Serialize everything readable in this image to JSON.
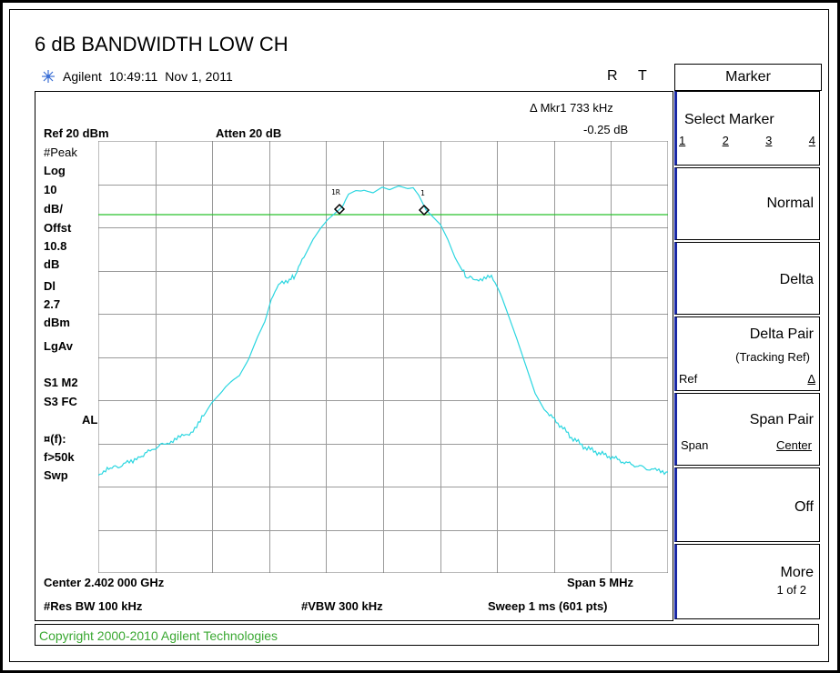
{
  "title": "6 dB BANDWIDTH LOW CH",
  "header": {
    "brand": "Agilent",
    "time": "10:49:11",
    "date": "Nov 1, 2011",
    "r_label": "R",
    "t_label": "T"
  },
  "screen": {
    "marker_readout": "Δ Mkr1  733 kHz",
    "marker_delta": "-0.25 dB",
    "ref": "Ref 20 dBm",
    "atten": "Atten 20 dB",
    "left_labels": [
      "#Peak",
      "Log",
      "10",
      "dB/",
      "Offst",
      "10.8",
      "dB",
      "Dl",
      "2.7",
      "dBm",
      "LgAv",
      "S1  M2",
      "S3  FC",
      "AL",
      "¤(f):",
      "f>50k",
      "Swp"
    ],
    "center": "Center 2.402 000 GHz",
    "span": "Span 5 MHz",
    "res_bw": "#Res BW 100 kHz",
    "vbw": "#VBW 300 kHz",
    "sweep": "Sweep 1 ms (601 pts)",
    "marker1r_label": "1R",
    "marker1_label": "1"
  },
  "softkeys": {
    "title": "Marker",
    "select_marker": "Select Marker",
    "select_options": [
      "1",
      "2",
      "3",
      "4"
    ],
    "normal": "Normal",
    "delta": "Delta",
    "delta_pair": "Delta Pair",
    "delta_pair_sub": "(Tracking Ref)",
    "delta_pair_ref": "Ref",
    "delta_pair_delta": "Δ",
    "span_pair": "Span Pair",
    "span_pair_span": "Span",
    "span_pair_center": "Center",
    "off": "Off",
    "more": "More",
    "more_sub": "1 of 2"
  },
  "copyright": "Copyright 2000-2010 Agilent Technologies",
  "colors": {
    "trace": "#2bd6e0",
    "display_line": "#29c22c",
    "softkey_accent": "#1b2aa6"
  }
}
